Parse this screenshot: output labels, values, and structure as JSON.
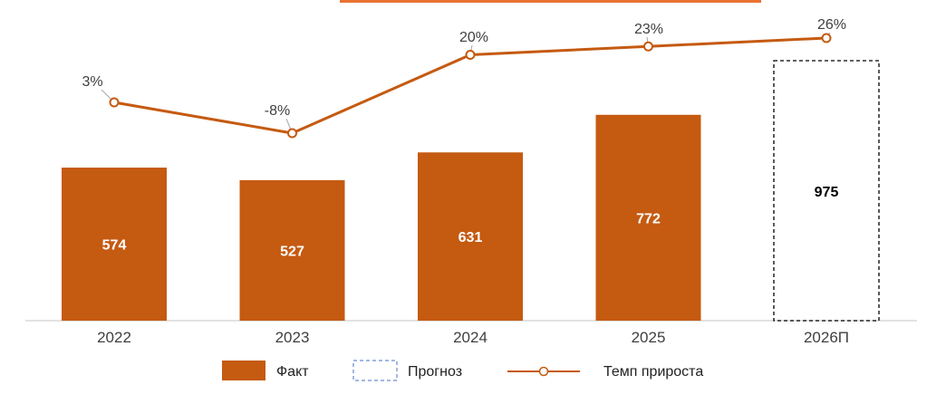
{
  "chart_data": {
    "type": "bar",
    "categories": [
      "2022",
      "2023",
      "2024",
      "2025",
      "2026П"
    ],
    "series": [
      {
        "name": "Факт",
        "type": "bar",
        "values": [
          574,
          527,
          631,
          772,
          null
        ],
        "value_labels": [
          "574",
          "527",
          "631",
          "772",
          ""
        ],
        "color": "#C55A11"
      },
      {
        "name": "Прогноз",
        "type": "bar-outline-dashed",
        "values": [
          null,
          null,
          null,
          null,
          975
        ],
        "value_labels": [
          "",
          "",
          "",
          "",
          "975"
        ],
        "color": "#000000"
      },
      {
        "name": "Темп прироста",
        "type": "line",
        "values": [
          3,
          -8,
          20,
          23,
          26
        ],
        "value_labels": [
          "3%",
          "-8%",
          "20%",
          "23%",
          "26%"
        ],
        "unit": "%",
        "color": "#C55A11"
      }
    ],
    "ylim": [
      0,
      975
    ],
    "line_ylim": [
      -8,
      26
    ],
    "grid": false,
    "legend": {
      "position": "bottom",
      "items": [
        "Факт",
        "Прогноз",
        "Темп прироста"
      ]
    },
    "title": "",
    "xlabel": "",
    "ylabel": ""
  }
}
